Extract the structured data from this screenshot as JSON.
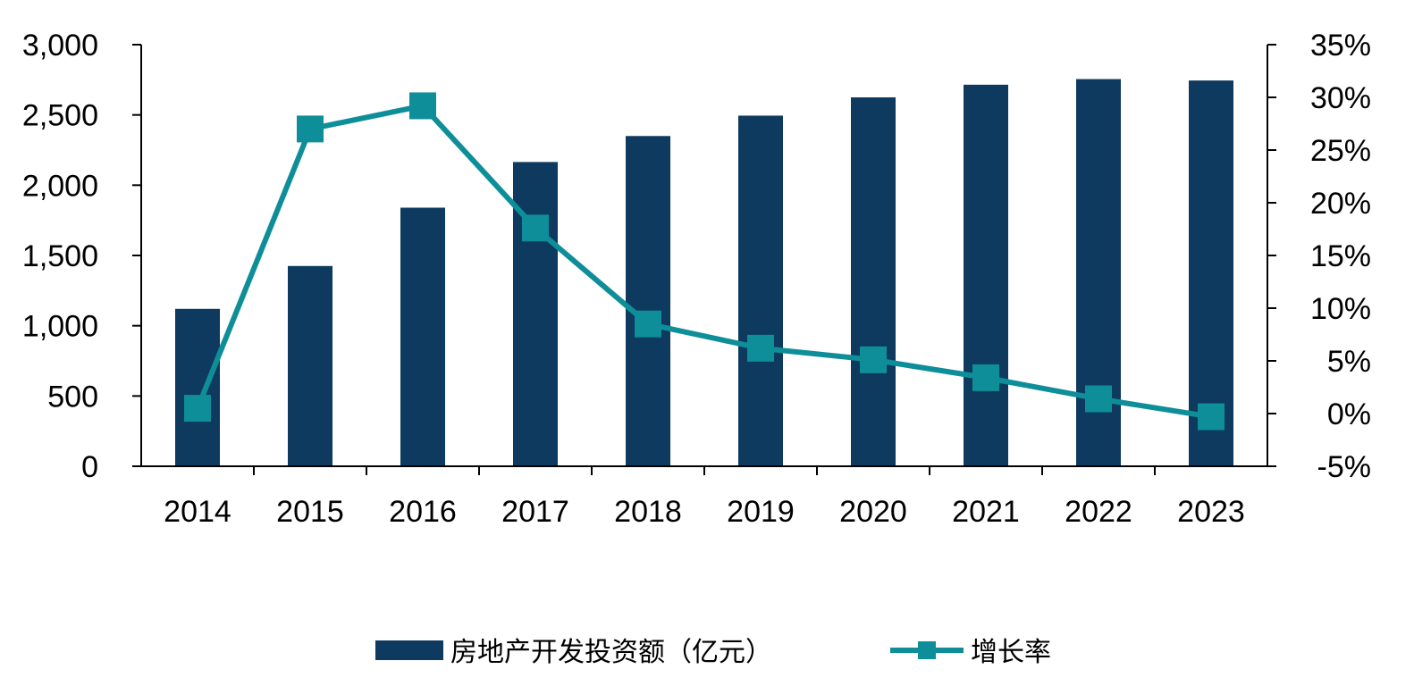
{
  "chart_data": {
    "type": "bar",
    "categories": [
      "2014",
      "2015",
      "2016",
      "2017",
      "2018",
      "2019",
      "2020",
      "2021",
      "2022",
      "2023"
    ],
    "series": [
      {
        "name": "房地产开发投资额（亿元）",
        "type": "bar",
        "axis": "left",
        "color": "#0d3a5e",
        "values": [
          1120,
          1425,
          1840,
          2165,
          2350,
          2495,
          2625,
          2715,
          2755,
          2745
        ]
      },
      {
        "name": "增长率",
        "type": "line",
        "axis": "right",
        "color": "#0e8e99",
        "values": [
          0.5,
          27.0,
          29.2,
          17.6,
          8.5,
          6.2,
          5.1,
          3.4,
          1.4,
          -0.3
        ]
      }
    ],
    "y_left": {
      "ylim": [
        0,
        3000
      ],
      "ticks": [
        0,
        500,
        1000,
        1500,
        2000,
        2500,
        3000
      ],
      "tick_labels": [
        "0",
        "500",
        "1,000",
        "1,500",
        "2,000",
        "2,500",
        "3,000"
      ]
    },
    "y_right": {
      "ylim": [
        -5,
        35
      ],
      "ticks": [
        -5,
        0,
        5,
        10,
        15,
        20,
        25,
        30,
        35
      ],
      "tick_labels": [
        "-5%",
        "0%",
        "5%",
        "10%",
        "15%",
        "20%",
        "25%",
        "30%",
        "35%"
      ]
    },
    "grid": false,
    "legend_placement": "bottom-center"
  }
}
